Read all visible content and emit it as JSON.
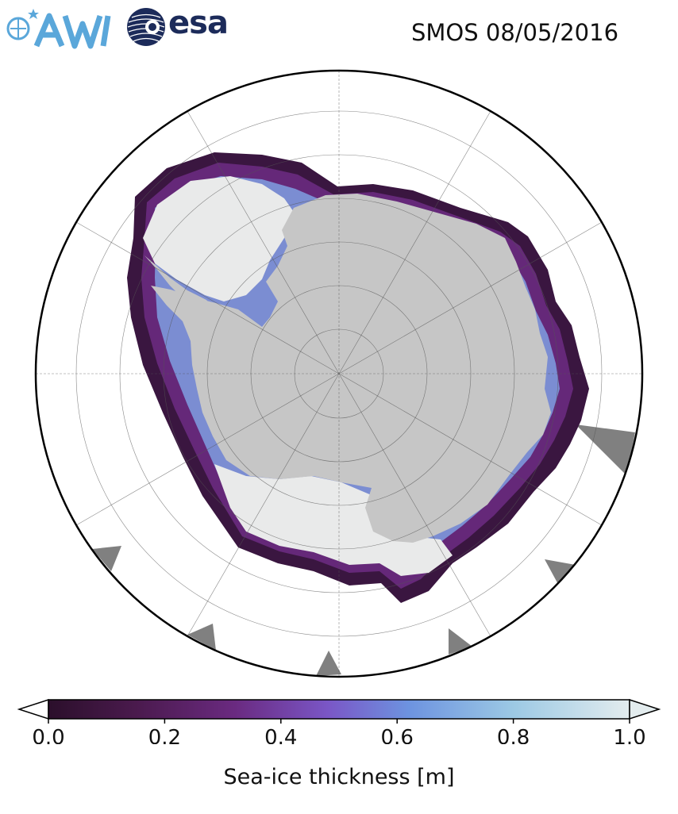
{
  "header": {
    "logo_awi": "AWI",
    "logo_esa": "esa",
    "title": "SMOS 08/05/2016"
  },
  "colors": {
    "land": "#c6c6c6",
    "open_water": "#ffffff",
    "no_data": "#808080",
    "thick_ice_max": "#e9eaea",
    "awi_blue": "#5aa7da",
    "esa_navy": "#1c2b5a"
  },
  "colorbar": {
    "label": "Sea-ice thickness [m]",
    "ticks": [
      "0.0",
      "0.2",
      "0.4",
      "0.6",
      "0.8",
      "1.0"
    ],
    "min": 0.0,
    "max": 1.0,
    "extend": "both",
    "colormap": [
      "#2b0f2b",
      "#4a1a4d",
      "#6a2a80",
      "#7a56c6",
      "#6d93e0",
      "#9cc9e4",
      "#e3ecee"
    ]
  },
  "map": {
    "projection": "south-polar-stereographic",
    "gridlines": true
  }
}
